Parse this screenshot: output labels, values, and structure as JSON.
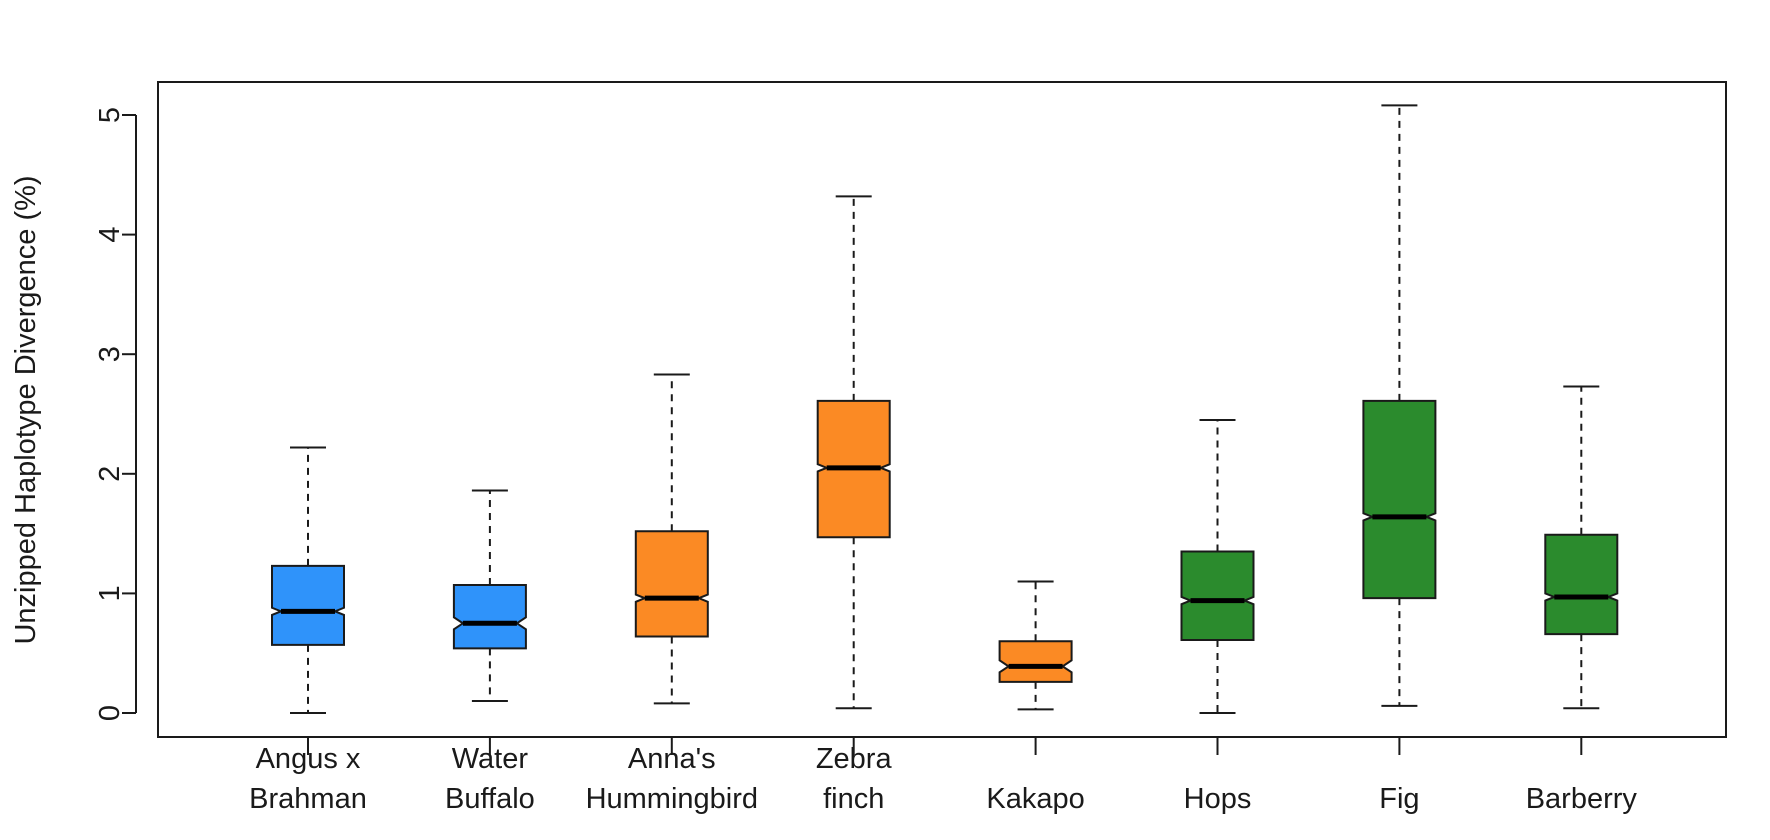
{
  "chart_data": {
    "type": "boxplot",
    "notched": true,
    "title": "",
    "xlabel": "",
    "ylabel": "Unzipped Haplotype Divergence (%)",
    "ylim": [
      -0.2,
      5.3
    ],
    "yticks": [
      0,
      1,
      2,
      3,
      4,
      5
    ],
    "ytick_labels": [
      "0",
      "1",
      "2",
      "3",
      "4",
      "5"
    ],
    "grid": false,
    "colors": {
      "mammal": "#2f93fa",
      "bird": "#fb8a24",
      "plant": "#2b8b2d"
    },
    "categories": [
      {
        "label_lines": [
          "Angus x",
          "Brahman"
        ],
        "group": "mammal",
        "whisker_low": 0.0,
        "q1": 0.57,
        "median": 0.85,
        "q3": 1.23,
        "whisker_high": 2.22,
        "notch_low": 0.82,
        "notch_high": 0.88
      },
      {
        "label_lines": [
          "Water",
          "Buffalo"
        ],
        "group": "mammal",
        "whisker_low": 0.1,
        "q1": 0.54,
        "median": 0.75,
        "q3": 1.07,
        "whisker_high": 1.86,
        "notch_low": 0.7,
        "notch_high": 0.8
      },
      {
        "label_lines": [
          "Anna's",
          "Hummingbird"
        ],
        "group": "bird",
        "whisker_low": 0.08,
        "q1": 0.64,
        "median": 0.96,
        "q3": 1.52,
        "whisker_high": 2.83,
        "notch_low": 0.93,
        "notch_high": 0.99
      },
      {
        "label_lines": [
          "Zebra",
          "finch"
        ],
        "group": "bird",
        "whisker_low": 0.04,
        "q1": 1.47,
        "median": 2.05,
        "q3": 2.61,
        "whisker_high": 4.32,
        "notch_low": 2.02,
        "notch_high": 2.08
      },
      {
        "label_lines": [
          "Kakapo"
        ],
        "group": "bird",
        "whisker_low": 0.03,
        "q1": 0.26,
        "median": 0.39,
        "q3": 0.6,
        "whisker_high": 1.1,
        "notch_low": 0.34,
        "notch_high": 0.44
      },
      {
        "label_lines": [
          "Hops"
        ],
        "group": "plant",
        "whisker_low": 0.0,
        "q1": 0.61,
        "median": 0.94,
        "q3": 1.35,
        "whisker_high": 2.45,
        "notch_low": 0.91,
        "notch_high": 0.97
      },
      {
        "label_lines": [
          "Fig"
        ],
        "group": "plant",
        "whisker_low": 0.06,
        "q1": 0.96,
        "median": 1.64,
        "q3": 2.61,
        "whisker_high": 5.08,
        "notch_low": 1.61,
        "notch_high": 1.67
      },
      {
        "label_lines": [
          "Barberry"
        ],
        "group": "plant",
        "whisker_low": 0.04,
        "q1": 0.66,
        "median": 0.97,
        "q3": 1.49,
        "whisker_high": 2.73,
        "notch_low": 0.94,
        "notch_high": 1.0
      }
    ]
  }
}
